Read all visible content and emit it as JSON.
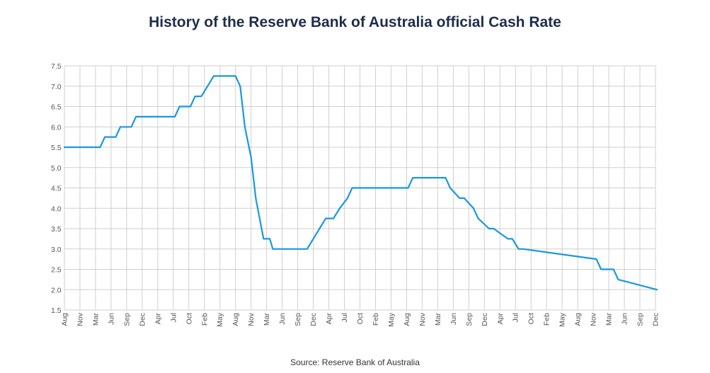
{
  "colors": {
    "line": "#1a97e0",
    "grid": "#cfcfcf",
    "title": "#1f2d4a"
  },
  "chart_data": {
    "type": "line",
    "title": "History of the Reserve Bank of Australia official Cash Rate",
    "source": "Source: Reserve Bank of Australia",
    "xlabel": "",
    "ylabel": "",
    "ylim": [
      1.5,
      7.5
    ],
    "yticks": [
      "7.5",
      "7.0",
      "6.5",
      "6.0",
      "5.5",
      "5.0",
      "4.5",
      "4.0",
      "3.5",
      "3.0",
      "2.5",
      "2.0",
      "1.5"
    ],
    "xticks": [
      "Aug",
      "Nov",
      "Mar",
      "Jun",
      "Sep",
      "Dec",
      "Apr",
      "Jul",
      "Oct",
      "Feb",
      "May",
      "Aug",
      "Nov",
      "Mar",
      "Jun",
      "Sep",
      "Dec",
      "Apr",
      "Jul",
      "Oct",
      "Feb",
      "May",
      "Aug",
      "Nov",
      "Mar",
      "Jun",
      "Sep",
      "Dec",
      "Apr",
      "Jul",
      "Oct",
      "Feb",
      "May",
      "Aug",
      "Nov",
      "Mar",
      "Jun",
      "Sep",
      "Dec"
    ],
    "grid": true,
    "legend": "none",
    "series": [
      {
        "x": [
          0,
          2.3,
          2.6,
          3.3,
          3.6,
          4.3,
          4.6,
          7.1,
          7.4,
          8.1,
          8.4,
          8.8,
          9.2,
          9.6,
          11.0,
          11.3,
          11.6,
          12.0,
          12.3,
          12.8,
          13.2,
          13.4,
          13.7,
          14.3,
          14.9,
          15.6,
          16.0,
          16.4,
          16.8,
          17.3,
          17.7,
          18.2,
          18.5,
          19.1,
          19.4,
          22.1,
          22.4,
          22.8,
          23.3,
          24.5,
          24.8,
          25.4,
          25.7,
          26.3,
          26.6,
          27.3,
          27.6,
          28.5,
          28.8,
          29.2,
          29.5,
          34.2,
          34.5,
          35.3,
          35.6,
          38.1
        ],
        "y": [
          5.5,
          5.5,
          5.75,
          5.75,
          6.0,
          6.0,
          6.25,
          6.25,
          6.5,
          6.5,
          6.75,
          6.75,
          7.0,
          7.25,
          7.25,
          7.0,
          6.0,
          5.25,
          4.25,
          3.25,
          3.25,
          3.0,
          3.0,
          3.0,
          3.0,
          3.0,
          3.25,
          3.5,
          3.75,
          3.75,
          4.0,
          4.25,
          4.5,
          4.5,
          4.5,
          4.5,
          4.75,
          4.75,
          4.75,
          4.75,
          4.5,
          4.25,
          4.25,
          4.0,
          3.75,
          3.5,
          3.5,
          3.25,
          3.25,
          3.0,
          3.0,
          2.75,
          2.5,
          2.5,
          2.25,
          2.0
        ]
      }
    ]
  }
}
